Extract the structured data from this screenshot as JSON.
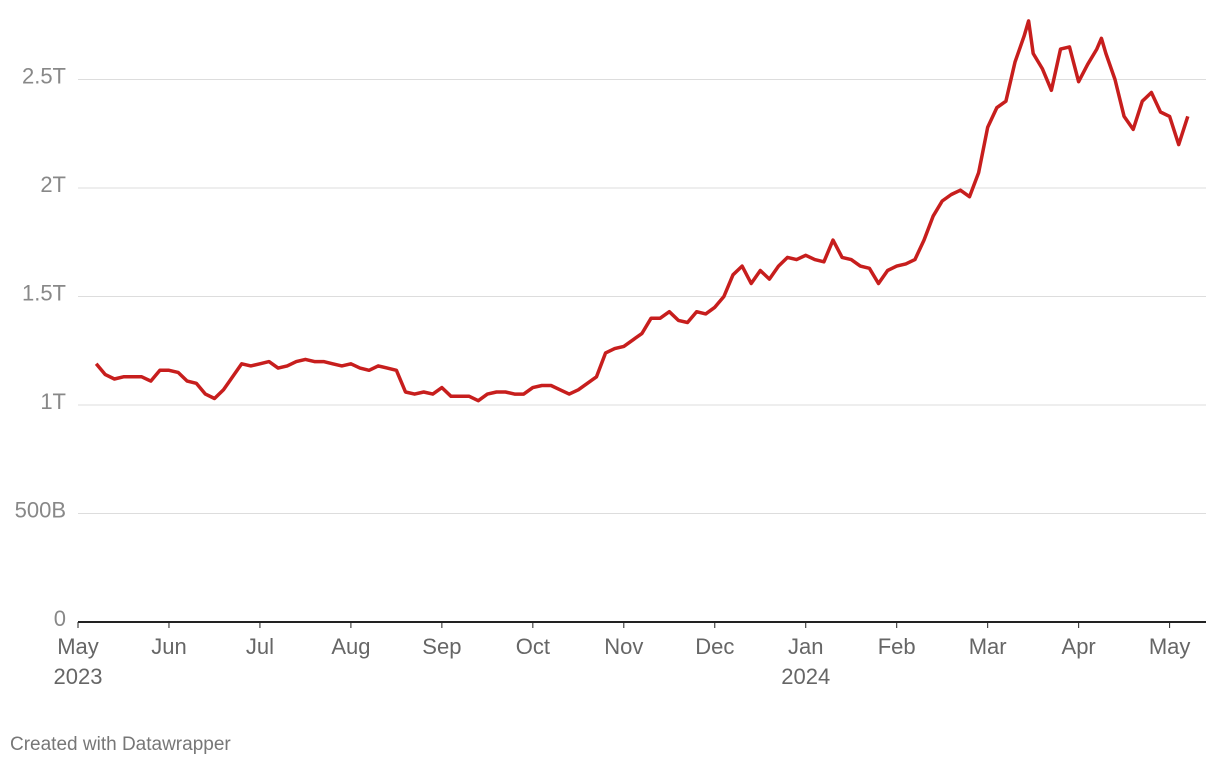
{
  "chart_data": {
    "type": "line",
    "credit": "Created with Datawrapper",
    "x": [
      0.2,
      0.3,
      0.4,
      0.5,
      0.6,
      0.7,
      0.8,
      0.9,
      1.0,
      1.1,
      1.2,
      1.3,
      1.4,
      1.5,
      1.6,
      1.7,
      1.8,
      1.9,
      2.0,
      2.1,
      2.2,
      2.3,
      2.4,
      2.5,
      2.6,
      2.7,
      2.8,
      2.9,
      3.0,
      3.1,
      3.2,
      3.3,
      3.4,
      3.5,
      3.6,
      3.7,
      3.8,
      3.9,
      4.0,
      4.1,
      4.2,
      4.3,
      4.4,
      4.5,
      4.6,
      4.7,
      4.8,
      4.9,
      5.0,
      5.1,
      5.2,
      5.3,
      5.4,
      5.5,
      5.6,
      5.7,
      5.8,
      5.9,
      6.0,
      6.1,
      6.2,
      6.3,
      6.4,
      6.5,
      6.6,
      6.7,
      6.8,
      6.9,
      7.0,
      7.1,
      7.2,
      7.3,
      7.4,
      7.5,
      7.6,
      7.7,
      7.8,
      7.9,
      8.0,
      8.1,
      8.2,
      8.3,
      8.4,
      8.5,
      8.6,
      8.7,
      8.8,
      8.9,
      9.0,
      9.1,
      9.2,
      9.3,
      9.4,
      9.5,
      9.6,
      9.7,
      9.8,
      9.9,
      10.0,
      10.1,
      10.2,
      10.3,
      10.4,
      10.45,
      10.5,
      10.6,
      10.7,
      10.8,
      10.9,
      11.0,
      11.1,
      11.2,
      11.25,
      11.3,
      11.4,
      11.5,
      11.6,
      11.7,
      11.8,
      11.9,
      12.0,
      12.1,
      12.2
    ],
    "series": [
      {
        "color": "#c71e1d",
        "values": [
          1.19,
          1.14,
          1.12,
          1.13,
          1.13,
          1.13,
          1.11,
          1.16,
          1.16,
          1.15,
          1.11,
          1.1,
          1.05,
          1.03,
          1.07,
          1.13,
          1.19,
          1.18,
          1.19,
          1.2,
          1.17,
          1.18,
          1.2,
          1.21,
          1.2,
          1.2,
          1.19,
          1.18,
          1.19,
          1.17,
          1.16,
          1.18,
          1.17,
          1.16,
          1.06,
          1.05,
          1.06,
          1.05,
          1.08,
          1.04,
          1.04,
          1.04,
          1.02,
          1.05,
          1.06,
          1.06,
          1.05,
          1.05,
          1.08,
          1.09,
          1.09,
          1.07,
          1.05,
          1.07,
          1.1,
          1.13,
          1.24,
          1.26,
          1.27,
          1.3,
          1.33,
          1.4,
          1.4,
          1.43,
          1.39,
          1.38,
          1.43,
          1.42,
          1.45,
          1.5,
          1.6,
          1.64,
          1.56,
          1.62,
          1.58,
          1.64,
          1.68,
          1.67,
          1.69,
          1.67,
          1.66,
          1.76,
          1.68,
          1.67,
          1.64,
          1.63,
          1.56,
          1.62,
          1.64,
          1.65,
          1.67,
          1.76,
          1.87,
          1.94,
          1.97,
          1.99,
          1.96,
          2.07,
          2.28,
          2.37,
          2.4,
          2.58,
          2.7,
          2.77,
          2.62,
          2.55,
          2.45,
          2.64,
          2.65,
          2.49,
          2.57,
          2.64,
          2.69,
          2.62,
          2.5,
          2.33,
          2.27,
          2.4,
          2.44,
          2.35,
          2.33,
          2.2,
          2.33
        ]
      }
    ],
    "xlim": [
      0,
      12.4
    ],
    "xticks": [
      {
        "value": 0,
        "label": "May"
      },
      {
        "value": 1,
        "label": "Jun"
      },
      {
        "value": 2,
        "label": "Jul"
      },
      {
        "value": 3,
        "label": "Aug"
      },
      {
        "value": 4,
        "label": "Sep"
      },
      {
        "value": 5,
        "label": "Oct"
      },
      {
        "value": 6,
        "label": "Nov"
      },
      {
        "value": 7,
        "label": "Dec"
      },
      {
        "value": 8,
        "label": "Jan"
      },
      {
        "value": 9,
        "label": "Feb"
      },
      {
        "value": 10,
        "label": "Mar"
      },
      {
        "value": 11,
        "label": "Apr"
      },
      {
        "value": 12,
        "label": "May"
      }
    ],
    "xtick_years": [
      {
        "value": 0,
        "label": "2023"
      },
      {
        "value": 8,
        "label": "2024"
      }
    ],
    "ylim": [
      0,
      2.8
    ],
    "yticks": [
      0,
      {
        "value": 0.5,
        "label": "500B"
      },
      {
        "value": 1,
        "label": "1T"
      },
      {
        "value": 1.5,
        "label": "1.5T"
      },
      {
        "value": 2,
        "label": "2T"
      },
      {
        "value": 2.5,
        "label": "2.5T"
      }
    ],
    "grid": true
  }
}
